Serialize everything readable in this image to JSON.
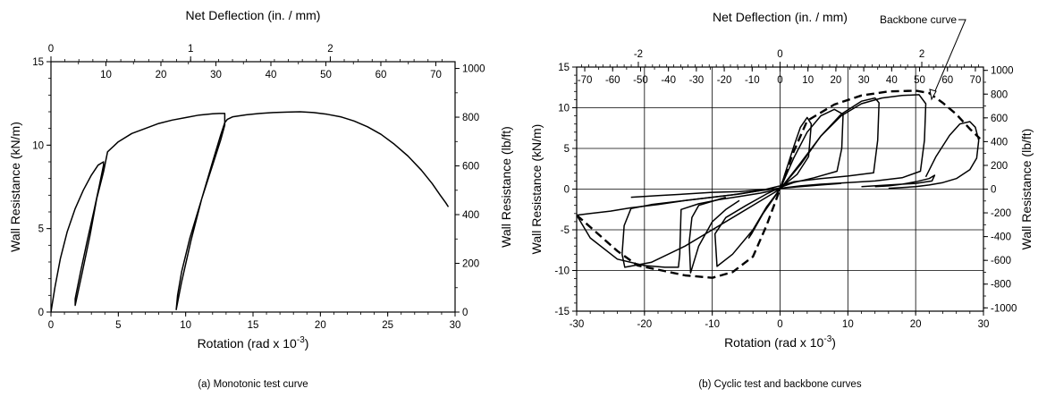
{
  "chart_data": [
    {
      "type": "line",
      "caption": "(a) Monotonic test curve",
      "xlabel": "Rotation (rad x 10",
      "xlabel_exp": "-3",
      "xlabel_end": ")",
      "ylabel": "Wall Resistance (kN/m)",
      "top_xlabel": "Net Deflection (in. / mm)",
      "right_ylabel": "Wall Resistance (lb/ft)",
      "xlim": [
        0,
        30
      ],
      "ylim": [
        0,
        15
      ],
      "xticks": [
        0,
        5,
        10,
        15,
        20,
        25,
        30
      ],
      "yticks": [
        0,
        5,
        10,
        15
      ],
      "top_in_ticks": [
        0,
        1,
        2
      ],
      "top_mm_ticks": [
        10,
        20,
        30,
        40,
        50,
        60,
        70
      ],
      "right_ticks": [
        0,
        200,
        400,
        600,
        800,
        1000
      ],
      "grid": false,
      "series": [
        {
          "x": [
            0,
            0.3,
            0.7,
            1.2,
            1.8,
            2.4,
            3.0,
            3.5,
            3.9,
            3.9,
            3.6,
            3.2,
            2.7,
            2.2,
            1.8,
            1.8,
            2.3,
            2.9,
            3.4,
            3.9,
            4.2,
            5.0,
            6.0,
            7.0,
            8.0,
            9.0,
            10.0,
            11.0,
            12.0,
            12.5,
            12.9,
            12.9,
            12.6,
            12.0,
            11.2,
            10.3,
            9.7,
            9.4,
            9.3,
            9.7,
            10.4,
            11.2,
            12.0,
            12.6,
            12.9,
            13.1,
            13.5,
            14.5,
            15.5,
            16.5,
            17.5,
            18.5,
            19.5,
            20.5,
            21.5,
            22.5,
            23.5,
            24.5,
            25.5,
            26.5,
            27.5,
            28.3,
            28.9,
            29.3,
            29.5
          ],
          "y": [
            0,
            1.5,
            3.2,
            4.8,
            6.2,
            7.3,
            8.2,
            8.8,
            9.0,
            8.8,
            7.6,
            6.1,
            4.3,
            2.4,
            0.8,
            0.4,
            2.3,
            4.6,
            6.8,
            8.4,
            9.6,
            10.2,
            10.7,
            11.0,
            11.3,
            11.5,
            11.65,
            11.8,
            11.88,
            11.9,
            11.9,
            11.2,
            10.3,
            8.8,
            6.8,
            4.4,
            2.4,
            1.0,
            0.15,
            1.8,
            4.3,
            6.8,
            9.0,
            10.6,
            11.35,
            11.55,
            11.7,
            11.82,
            11.9,
            11.95,
            11.98,
            12.0,
            11.95,
            11.85,
            11.7,
            11.45,
            11.1,
            10.65,
            10.05,
            9.35,
            8.5,
            7.7,
            7.0,
            6.55,
            6.3
          ]
        }
      ]
    },
    {
      "type": "line",
      "caption": "(b) Cyclic test and backbone curves",
      "xlabel": "Rotation (rad x 10",
      "xlabel_exp": "-3",
      "xlabel_end": ")",
      "ylabel": "Wall Resistance (kN/m)",
      "top_xlabel": "Net Deflection (in. / mm)",
      "right_ylabel": "Wall Resistance (lb/ft)",
      "annotation": "Backbone curve",
      "xlim": [
        -30,
        30
      ],
      "ylim": [
        -15,
        15
      ],
      "xticks": [
        -30,
        -20,
        -10,
        0,
        10,
        20,
        30
      ],
      "yticks": [
        -15,
        -10,
        -5,
        0,
        5,
        10,
        15
      ],
      "top_in_ticks": [
        -2,
        0,
        2
      ],
      "top_mm_ticks": [
        -70,
        -60,
        -50,
        -40,
        -30,
        -20,
        -10,
        0,
        10,
        20,
        30,
        40,
        50,
        60,
        70
      ],
      "right_ticks": [
        -1000,
        -800,
        -600,
        -400,
        -200,
        0,
        200,
        400,
        600,
        800,
        1000
      ],
      "grid": true,
      "series": [
        {
          "name": "Backbone curve",
          "style": "dashed",
          "x": [
            -30,
            -27,
            -24,
            -21,
            -18,
            -14,
            -10,
            -7,
            -4,
            -2,
            0,
            2,
            4,
            8,
            12,
            16,
            20,
            22,
            24,
            26,
            28,
            29.5
          ],
          "y": [
            -3.2,
            -5.4,
            -7.6,
            -9.4,
            -9.9,
            -10.6,
            -10.9,
            -10.2,
            -8.3,
            -4.5,
            0,
            4.6,
            8.4,
            10.4,
            11.5,
            12.0,
            12.1,
            11.8,
            10.6,
            9.2,
            7.4,
            6.2
          ]
        },
        {
          "name": "loop-large",
          "x": [
            0,
            3,
            6,
            9,
            12,
            15,
            18,
            20.5,
            21.5,
            21.3,
            20.7,
            18,
            14,
            10,
            6,
            3,
            0,
            -3,
            -6,
            -10,
            -14,
            -18,
            -22,
            -25,
            -28,
            -30,
            -28,
            -24,
            -20,
            -17,
            -15,
            -14.8,
            -14.6,
            -12,
            -9,
            -6,
            -3,
            0
          ],
          "y": [
            0,
            3.2,
            6.5,
            9.0,
            10.5,
            11.2,
            11.5,
            11.6,
            10.5,
            6.0,
            2.2,
            1.4,
            1.0,
            0.8,
            0.6,
            0.4,
            0.1,
            -0.2,
            -0.6,
            -1.0,
            -1.4,
            -1.9,
            -2.3,
            -2.7,
            -3.0,
            -3.2,
            -6.0,
            -8.6,
            -9.4,
            -9.6,
            -9.6,
            -8.0,
            -2.5,
            -1.8,
            -1.3,
            -0.9,
            -0.5,
            0
          ]
        },
        {
          "name": "loop-mid",
          "x": [
            0,
            3,
            6,
            9,
            12,
            14,
            14.6,
            14.4,
            13.8,
            10,
            6,
            2,
            0,
            -3,
            -7,
            -11,
            -15,
            -19,
            -22,
            -23,
            -23.3,
            -22.9,
            -19,
            -14,
            -10,
            -6,
            -3,
            0
          ],
          "y": [
            0,
            3.0,
            6.5,
            9.2,
            10.8,
            11.2,
            10.6,
            6.0,
            2.0,
            1.6,
            1.3,
            0.9,
            0.4,
            -0.2,
            -0.7,
            -1.1,
            -1.5,
            -1.9,
            -2.4,
            -4.5,
            -8.0,
            -9.6,
            -9.0,
            -7.0,
            -5.0,
            -3.0,
            -1.5,
            0
          ]
        },
        {
          "name": "loop-small",
          "x": [
            0,
            2,
            4,
            6,
            8,
            9.3,
            9.1,
            8.4,
            5,
            2,
            0,
            -2,
            -5,
            -8,
            -9.6,
            -9.3,
            -7,
            -4,
            -2,
            0
          ],
          "y": [
            0,
            3.8,
            7.0,
            9.0,
            9.8,
            9.2,
            5.0,
            2.2,
            1.4,
            0.8,
            0.2,
            -0.6,
            -2.0,
            -3.5,
            -5.5,
            -9.5,
            -8.0,
            -5.0,
            -2.2,
            0
          ]
        },
        {
          "name": "loop-inner",
          "x": [
            0,
            1,
            2,
            3,
            4,
            4.6,
            4.2,
            2.5,
            1,
            0,
            -1,
            -2.5,
            -4,
            -4.6,
            -4.2,
            -2.5,
            -1,
            0
          ],
          "y": [
            0,
            2.6,
            5.2,
            7.6,
            8.8,
            8.0,
            4.0,
            1.8,
            0.8,
            0.1,
            -1.2,
            -3.0,
            -5.0,
            -6.0,
            -5.5,
            -3.0,
            -1.2,
            0
          ]
        },
        {
          "name": "loop-right-tail",
          "x": [
            14,
            16,
            18,
            20,
            22,
            22.8,
            22.4,
            20,
            16,
            12
          ],
          "y": [
            0.3,
            0.4,
            0.6,
            0.9,
            1.3,
            1.7,
            1.0,
            0.7,
            0.5,
            0.3
          ]
        },
        {
          "name": "loop-far",
          "x": [
            21.5,
            23,
            25,
            26.5,
            28,
            28.8,
            29.3,
            29,
            28,
            26,
            24,
            22,
            20,
            18,
            16
          ],
          "y": [
            1.5,
            4.0,
            6.6,
            8.0,
            8.3,
            7.6,
            6.0,
            3.8,
            2.4,
            1.3,
            0.8,
            0.5,
            0.3,
            0.2,
            0.1
          ]
        },
        {
          "name": "loop-left-mid",
          "x": [
            -8,
            -10,
            -12,
            -13,
            -13.4,
            -13.2,
            -12,
            -10,
            -8,
            -6
          ],
          "y": [
            -1.0,
            -1.5,
            -2.0,
            -3.5,
            -6.5,
            -10.3,
            -7.0,
            -4.0,
            -2.5,
            -1.4
          ]
        },
        {
          "name": "loop-left-band",
          "x": [
            -22,
            -18,
            -14,
            -10,
            -6,
            -3,
            0,
            3,
            6,
            9
          ],
          "y": [
            -1.0,
            -0.8,
            -0.6,
            -0.4,
            -0.3,
            -0.1,
            0.1,
            0.3,
            0.5,
            0.7
          ]
        }
      ]
    }
  ]
}
